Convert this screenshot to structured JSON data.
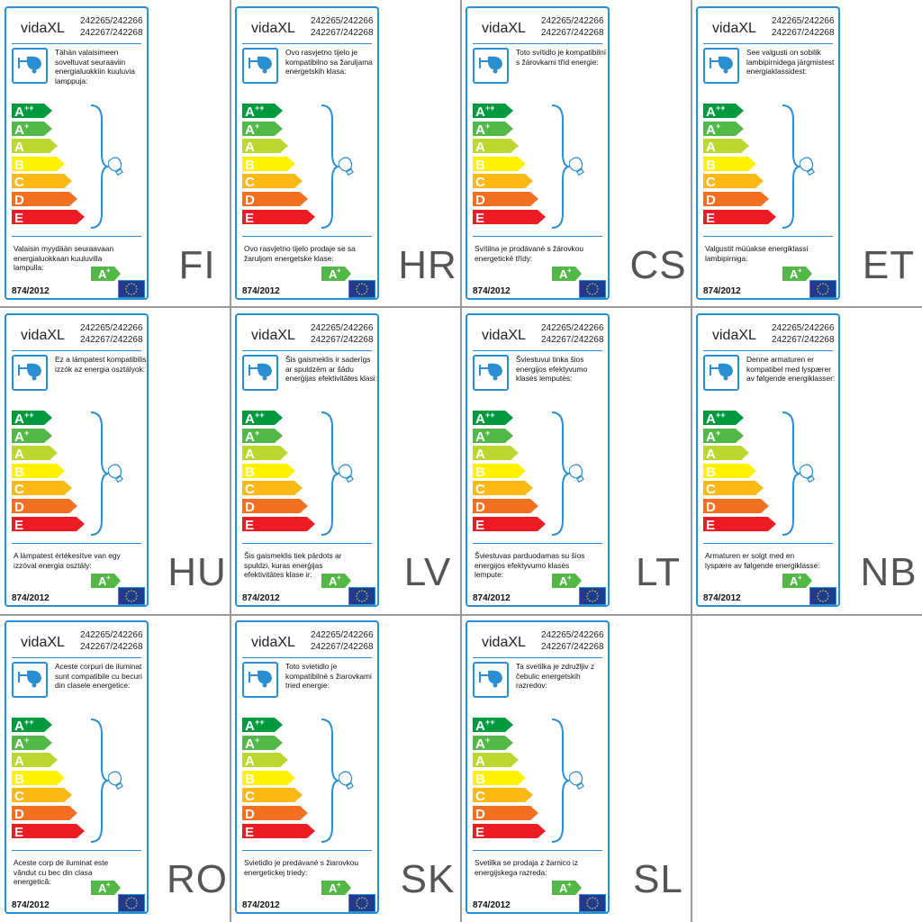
{
  "brand": "vidaXL",
  "model_numbers": [
    "242265/242266",
    "242267/242268"
  ],
  "regulation": "874/2012",
  "fixture_class": "A+",
  "energy_classes": [
    {
      "letter": "A",
      "sup": "++",
      "color": "#009a3e"
    },
    {
      "letter": "A",
      "sup": "+",
      "color": "#52b947"
    },
    {
      "letter": "A",
      "sup": "",
      "color": "#bed630"
    },
    {
      "letter": "B",
      "sup": "",
      "color": "#fff200"
    },
    {
      "letter": "C",
      "sup": "",
      "color": "#fdb913"
    },
    {
      "letter": "D",
      "sup": "",
      "color": "#f37021"
    },
    {
      "letter": "E",
      "sup": "",
      "color": "#ed1c24"
    }
  ],
  "accent_color": "#2a8fd0",
  "icons": [
    "lamp-icon",
    "bulb-icon",
    "eu-flag-icon"
  ],
  "labels": [
    {
      "code": "FI",
      "intro": "Tähän valaisimeen soveltuvat seuraaviin energialuokkiin kuuluvia lamppuja:",
      "footer": "Valaisin myydään seuraavaan energialuokkaan kuuluvilla lampulla:"
    },
    {
      "code": "HR",
      "intro": "Ovo rasvjetno tijelo je kompatibilno sa žaruljama energetskih klasa:",
      "footer": "Ovo rasvjetno tijelo prodaje se sa žaruljom energetske klase:"
    },
    {
      "code": "CS",
      "intro": "Toto svítidlo je kompatibilní s žárovkami tříd energie:",
      "footer": "Svítilna je prodávané s žárovkou energetické třídy:"
    },
    {
      "code": "ET",
      "intro": "See valgusti on sobilik lambipirnidega järgmistest energiaklassidest:",
      "footer": "Valgustit müüakse energiklassi lambipirniga:"
    },
    {
      "code": "HU",
      "intro": "Ez a lámpatest kompatibilis izzók az energia osztályok:",
      "footer": "A lámpatest értékesítve van egy izzóval energia osztály:"
    },
    {
      "code": "LV",
      "intro": "Šis gaismeklis ir saderīgs ar spuldzēm ar šādu enerģijas efektivitātes klasi:",
      "footer": "Šis gaismeklis tiek pārdots ar spuldzi, kuras enerģijas efektivitātes klase ir:"
    },
    {
      "code": "LT",
      "intro": "Šviestuvui tinka šios energijos efektyvumo klasės lemputės:",
      "footer": "Šviestuvas parduodamas su šios energijos efektyvumo klasės lempute:"
    },
    {
      "code": "NB",
      "intro": "Denne armaturen er kompatibel med lyspærer av følgende energiklasser:",
      "footer": "Armaturen er solgt med en lyspære av følgende energiklasse:"
    },
    {
      "code": "RO",
      "intro": "Aceste corpuri de iluminat sunt compatibile cu becuri din clasele energetice:",
      "footer": "Aceste corp de iluminat este vândut cu bec din clasa energetică:"
    },
    {
      "code": "SK",
      "intro": "Toto svietidlo je kompatibilné s žiarovkami tried energie:",
      "footer": "Svietidlo je predávané s žiarovkou energetickej triedy:"
    },
    {
      "code": "SL",
      "intro": "Ta svetilka je združljiv z čebulic energetskih razredov:",
      "footer": "Svetilka se prodaja z žarnico iz energijskega razreda:"
    }
  ]
}
